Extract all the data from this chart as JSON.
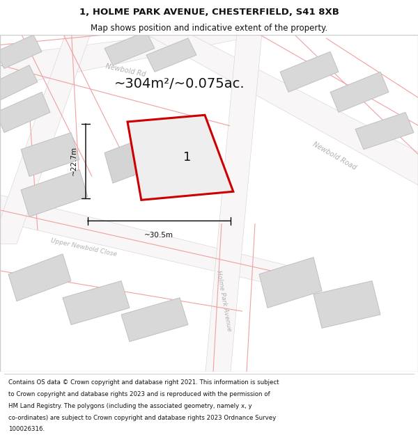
{
  "title_line1": "1, HOLME PARK AVENUE, CHESTERFIELD, S41 8XB",
  "title_line2": "Map shows position and indicative extent of the property.",
  "area_text": "~304m²/~0.075ac.",
  "property_label": "1",
  "dim_width": "~30.5m",
  "dim_height": "~22.7m",
  "footer_lines": [
    "Contains OS data © Crown copyright and database right 2021. This information is subject",
    "to Crown copyright and database rights 2023 and is reproduced with the permission of",
    "HM Land Registry. The polygons (including the associated geometry, namely x, y",
    "co-ordinates) are subject to Crown copyright and database rights 2023 Ordnance Survey",
    "100026316."
  ],
  "bg_color": "#f2f0f0",
  "road_color": "#f8f6f6",
  "road_border_color": "#d8d0d0",
  "block_color": "#d8d8d8",
  "block_border": "#c0c0c0",
  "property_fill": "#eeeeee",
  "property_outline": "#cc0000",
  "street_label_color": "#b0b0b0",
  "dim_color": "#111111",
  "title_color": "#111111",
  "footer_color": "#111111",
  "map_border_color": "#cccccc",
  "pink_road_color": "#f0a0a0"
}
